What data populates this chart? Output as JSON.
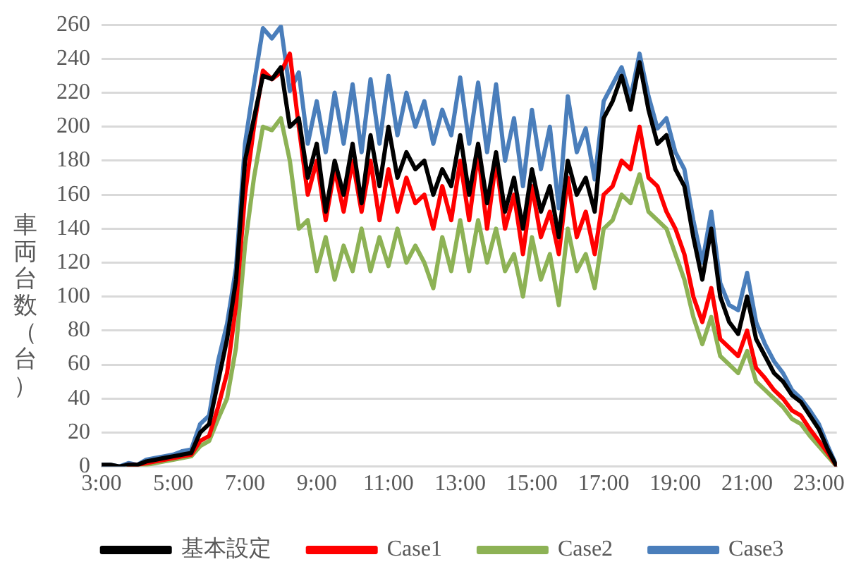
{
  "chart_data": {
    "type": "line",
    "ylabel": "車両台数（台）",
    "x": [
      3,
      3.25,
      3.5,
      3.75,
      4,
      4.25,
      4.5,
      4.75,
      5,
      5.25,
      5.5,
      5.75,
      6,
      6.25,
      6.5,
      6.75,
      7,
      7.25,
      7.5,
      7.75,
      8,
      8.25,
      8.5,
      8.75,
      9,
      9.25,
      9.5,
      9.75,
      10,
      10.25,
      10.5,
      10.75,
      11,
      11.25,
      11.5,
      11.75,
      12,
      12.25,
      12.5,
      12.75,
      13,
      13.25,
      13.5,
      13.75,
      14,
      14.25,
      14.5,
      14.75,
      15,
      15.25,
      15.5,
      15.75,
      16,
      16.25,
      16.5,
      16.75,
      17,
      17.25,
      17.5,
      17.75,
      18,
      18.25,
      18.5,
      18.75,
      19,
      19.25,
      19.5,
      19.75,
      20,
      20.25,
      20.5,
      20.75,
      21,
      21.25,
      21.5,
      21.75,
      22,
      22.25,
      22.5,
      22.75,
      23,
      23.25,
      23.5
    ],
    "series": [
      {
        "name": "基本設定",
        "color": "#000000",
        "values": [
          1,
          1,
          0,
          1,
          1,
          3,
          4,
          5,
          6,
          7,
          8,
          20,
          25,
          50,
          75,
          110,
          180,
          205,
          230,
          228,
          235,
          200,
          205,
          170,
          190,
          150,
          180,
          160,
          190,
          155,
          195,
          165,
          200,
          170,
          185,
          175,
          180,
          160,
          175,
          165,
          195,
          160,
          190,
          155,
          185,
          150,
          170,
          140,
          175,
          150,
          165,
          135,
          180,
          160,
          170,
          150,
          205,
          215,
          230,
          210,
          238,
          210,
          190,
          195,
          175,
          165,
          135,
          110,
          140,
          100,
          85,
          78,
          100,
          75,
          65,
          55,
          50,
          42,
          38,
          30,
          22,
          10,
          0
        ]
      },
      {
        "name": "Case1",
        "color": "#ff0000",
        "values": [
          null,
          null,
          null,
          1,
          1,
          2,
          3,
          4,
          5,
          6,
          7,
          15,
          18,
          35,
          55,
          95,
          160,
          200,
          233,
          228,
          232,
          243,
          200,
          160,
          180,
          145,
          175,
          150,
          180,
          150,
          180,
          145,
          175,
          150,
          170,
          155,
          160,
          140,
          165,
          145,
          180,
          145,
          185,
          140,
          180,
          140,
          160,
          125,
          165,
          135,
          150,
          125,
          170,
          135,
          150,
          125,
          160,
          165,
          180,
          175,
          200,
          170,
          165,
          150,
          140,
          125,
          100,
          85,
          105,
          75,
          70,
          65,
          80,
          58,
          52,
          45,
          40,
          33,
          30,
          22,
          15,
          8,
          0
        ]
      },
      {
        "name": "Case2",
        "color": "#8db255",
        "values": [
          null,
          null,
          null,
          0,
          0,
          1,
          2,
          3,
          4,
          5,
          6,
          12,
          15,
          28,
          40,
          70,
          130,
          170,
          200,
          198,
          205,
          180,
          140,
          145,
          115,
          135,
          110,
          130,
          115,
          140,
          115,
          135,
          118,
          140,
          120,
          130,
          120,
          105,
          135,
          115,
          145,
          115,
          145,
          120,
          140,
          115,
          125,
          100,
          135,
          110,
          125,
          95,
          140,
          115,
          125,
          105,
          140,
          145,
          160,
          155,
          172,
          150,
          145,
          140,
          125,
          110,
          88,
          72,
          88,
          65,
          60,
          55,
          68,
          50,
          45,
          40,
          35,
          28,
          25,
          18,
          12,
          6,
          0
        ]
      },
      {
        "name": "Case3",
        "color": "#4a7ebb",
        "values": [
          1,
          1,
          0,
          2,
          1,
          4,
          5,
          6,
          7,
          9,
          10,
          25,
          30,
          62,
          84,
          117,
          190,
          225,
          258,
          252,
          259,
          221,
          232,
          190,
          215,
          185,
          220,
          190,
          225,
          185,
          228,
          190,
          230,
          195,
          220,
          200,
          215,
          190,
          210,
          195,
          229,
          190,
          226,
          185,
          225,
          180,
          205,
          165,
          210,
          175,
          200,
          152,
          218,
          185,
          199,
          169,
          215,
          225,
          235,
          217,
          243,
          218,
          199,
          205,
          185,
          175,
          145,
          120,
          150,
          108,
          95,
          92,
          114,
          85,
          72,
          62,
          55,
          45,
          40,
          33,
          25,
          12,
          0
        ]
      }
    ],
    "xlim": [
      3,
      23.5
    ],
    "ylim": [
      0,
      260
    ],
    "xticks": [
      {
        "value": 3,
        "label": "3:00"
      },
      {
        "value": 5,
        "label": "5:00"
      },
      {
        "value": 7,
        "label": "7:00"
      },
      {
        "value": 9,
        "label": "9:00"
      },
      {
        "value": 11,
        "label": "11:00"
      },
      {
        "value": 13,
        "label": "13:00"
      },
      {
        "value": 15,
        "label": "15:00"
      },
      {
        "value": 17,
        "label": "17:00"
      },
      {
        "value": 19,
        "label": "19:00"
      },
      {
        "value": 21,
        "label": "21:00"
      },
      {
        "value": 23,
        "label": "23:00"
      }
    ],
    "yticks": [
      0,
      20,
      40,
      60,
      80,
      100,
      120,
      140,
      160,
      180,
      200,
      220,
      240,
      260
    ],
    "grid": "y",
    "legend": "bottom",
    "marker": "none",
    "line_style": "solid"
  }
}
